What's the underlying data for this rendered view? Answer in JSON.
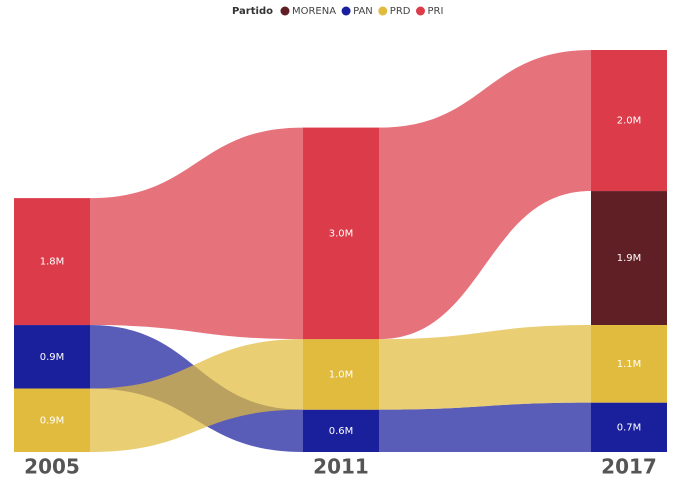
{
  "chart_data": {
    "type": "ribbon",
    "legend_title": "Partido",
    "legend_position": "top",
    "categories": [
      "2005",
      "2011",
      "2017"
    ],
    "series": [
      {
        "name": "MORENA",
        "color": "#5f1f25",
        "values": [
          null,
          null,
          1900000
        ],
        "value_labels": [
          null,
          null,
          "1.9M"
        ]
      },
      {
        "name": "PAN",
        "color": "#1a1f9c",
        "values": [
          900000,
          600000,
          700000
        ],
        "value_labels": [
          "0.9M",
          "0.6M",
          "0.7M"
        ]
      },
      {
        "name": "PRD",
        "color": "#e0bb3d",
        "values": [
          900000,
          1000000,
          1100000
        ],
        "value_labels": [
          "0.9M",
          "1.0M",
          "1.1M"
        ]
      },
      {
        "name": "PRI",
        "color": "#dc3b4a",
        "values": [
          1800000,
          3000000,
          2000000
        ],
        "value_labels": [
          "1.8M",
          "3.0M",
          "2.0M"
        ]
      }
    ]
  }
}
